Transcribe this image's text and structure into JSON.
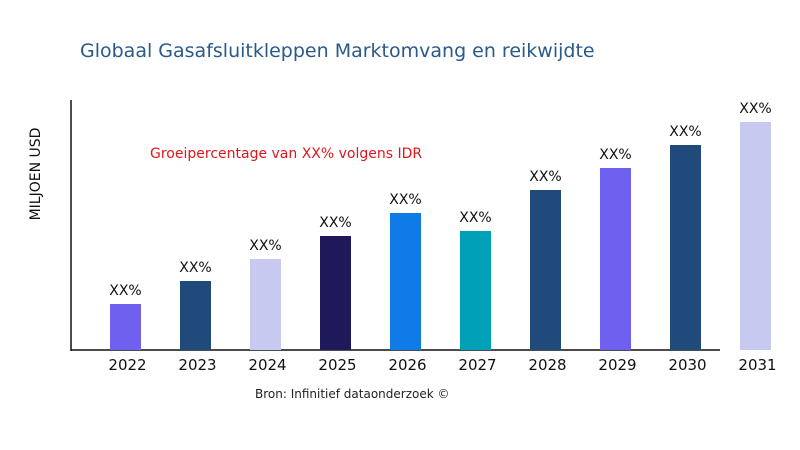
{
  "chart_data": {
    "type": "bar",
    "title": "Globaal Gasafsluitkleppen Marktomvang en reikwijdte",
    "ylabel": "MILJOEN USD",
    "xlabel": "",
    "annotation": "Groeipercentage van XX% volgens IDR",
    "source": "Bron: Infinitief dataonderzoek ©",
    "categories": [
      "2022",
      "2023",
      "2024",
      "2025",
      "2026",
      "2027",
      "2028",
      "2029",
      "2030",
      "2031"
    ],
    "values": [
      46,
      69,
      91,
      114,
      137,
      119,
      160,
      182,
      205,
      228
    ],
    "data_labels": [
      "XX%",
      "XX%",
      "XX%",
      "XX%",
      "XX%",
      "XX%",
      "XX%",
      "XX%",
      "XX%",
      "XX%"
    ],
    "colors": [
      "#7060f0",
      "#1f4a7a",
      "#c8c9f0",
      "#1e1a5a",
      "#0f7be6",
      "#00a0b8",
      "#1f4a7a",
      "#7060f0",
      "#1f4a7a",
      "#c8c9f0"
    ],
    "ylim": [
      0,
      250
    ],
    "grid": false,
    "legend": "none"
  }
}
